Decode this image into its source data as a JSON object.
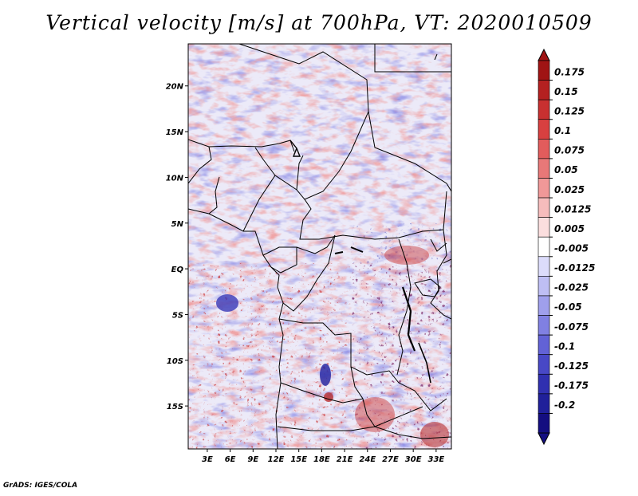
{
  "title": "Vertical velocity [m/s] at 700hPa, VT: 2020010509",
  "credit": "GrADS: IGES/COLA",
  "map": {
    "region": "Central Africa",
    "variable": "Vertical velocity",
    "units": "m/s",
    "level": "700hPa",
    "valid_time": "2020010509",
    "lat_ticks": [
      "20N",
      "15N",
      "10N",
      "5N",
      "EQ",
      "5S",
      "10S",
      "15S"
    ],
    "lat_values": [
      20,
      15,
      10,
      5,
      0,
      -5,
      -10,
      -15
    ],
    "lon_ticks": [
      "3E",
      "6E",
      "9E",
      "12E",
      "15E",
      "18E",
      "21E",
      "24E",
      "27E",
      "30E",
      "33E"
    ],
    "lon_values": [
      3,
      6,
      9,
      12,
      15,
      18,
      21,
      24,
      27,
      30,
      33
    ],
    "lon_range": [
      0.5,
      35.0
    ],
    "lat_range": [
      -19.7,
      24.6
    ]
  },
  "colorbar": {
    "labels": [
      "0.175",
      "0.15",
      "0.125",
      "0.1",
      "0.075",
      "0.05",
      "0.025",
      "0.0125",
      "0.005",
      "-0.005",
      "-0.0125",
      "-0.025",
      "-0.05",
      "-0.075",
      "-0.1",
      "-0.125",
      "-0.175",
      "-0.2"
    ],
    "colors": [
      "#a01414",
      "#b42020",
      "#c83030",
      "#d84040",
      "#e25c5c",
      "#e87878",
      "#f09898",
      "#f6bcbc",
      "#fbdede",
      "#ffffff",
      "#dcdcfb",
      "#bebef4",
      "#9f9fec",
      "#8080e2",
      "#6262d6",
      "#4848c6",
      "#3030b0",
      "#20209a",
      "#140e80"
    ]
  }
}
